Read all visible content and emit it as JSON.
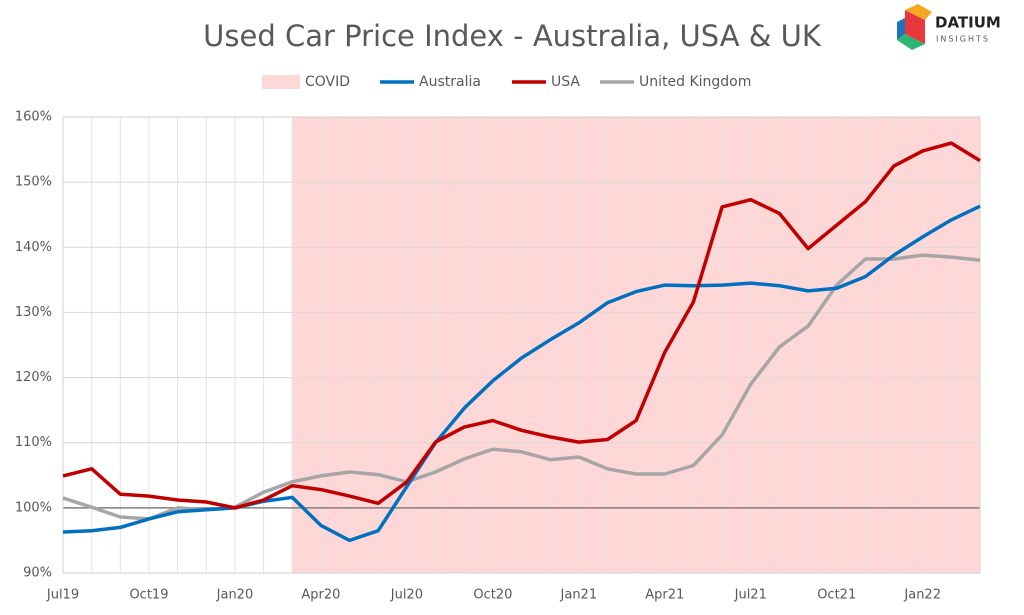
{
  "chart_data": {
    "type": "line",
    "title": "Used Car Price Index - Australia, USA & UK",
    "branding": {
      "name": "DATIUM",
      "tagline": "INSIGHTS"
    },
    "categories": [
      "Jul19",
      null,
      null,
      "Oct19",
      null,
      null,
      "Jan20",
      null,
      null,
      "Apr20",
      null,
      null,
      "Jul20",
      null,
      null,
      "Oct20",
      null,
      null,
      "Jan21",
      null,
      null,
      "Apr21",
      null,
      null,
      "Jul21",
      null,
      null,
      "Oct21",
      null,
      null,
      "Jan22",
      null,
      null
    ],
    "shaded_region": {
      "name": "COVID",
      "color": "#ffd7d7",
      "x_start": 8
    },
    "series": [
      {
        "name": "Australia",
        "color": "#0070c0",
        "values": [
          96.3,
          96.5,
          97,
          98.3,
          99.4,
          99.7,
          100,
          101,
          101.6,
          97.3,
          95,
          96.5,
          103.3,
          110,
          115.3,
          119.5,
          123,
          125.8,
          128.4,
          131.5,
          133.2,
          134.2,
          134.1,
          134.2,
          134.5,
          134.1,
          133.3,
          133.7,
          135.5,
          138.8,
          141.6,
          144.2,
          146.3
        ]
      },
      {
        "name": "USA",
        "color": "#c00000",
        "values": [
          104.9,
          106,
          102.1,
          101.8,
          101.2,
          100.9,
          100,
          101.2,
          103.4,
          102.8,
          101.8,
          100.7,
          104,
          110.1,
          112.4,
          113.4,
          111.9,
          110.9,
          110.1,
          110.5,
          113.4,
          123.9,
          131.6,
          146.2,
          147.3,
          145.2,
          139.8,
          143.4,
          147,
          152.5,
          154.8,
          156,
          153.3
        ]
      },
      {
        "name": "United Kingdom",
        "color": "#a6a6a6",
        "values": [
          101.5,
          100.1,
          98.6,
          98.3,
          100,
          99.7,
          100.1,
          102.4,
          104,
          104.9,
          105.5,
          105.1,
          104,
          105.5,
          107.5,
          109,
          108.6,
          107.4,
          107.8,
          106,
          105.2,
          105.2,
          106.5,
          111.2,
          119,
          124.7,
          127.9,
          134.2,
          138.2,
          138.2,
          138.8,
          138.5,
          138
        ]
      }
    ],
    "ylim": [
      90,
      160
    ],
    "yticks": [
      {
        "value": 90,
        "label": "90%"
      },
      {
        "value": 100,
        "label": "100%"
      },
      {
        "value": 110,
        "label": "110%"
      },
      {
        "value": 120,
        "label": "120%"
      },
      {
        "value": 130,
        "label": "130%"
      },
      {
        "value": 140,
        "label": "140%"
      },
      {
        "value": 150,
        "label": "150%"
      },
      {
        "value": 160,
        "label": "160%"
      }
    ],
    "grid": true
  }
}
